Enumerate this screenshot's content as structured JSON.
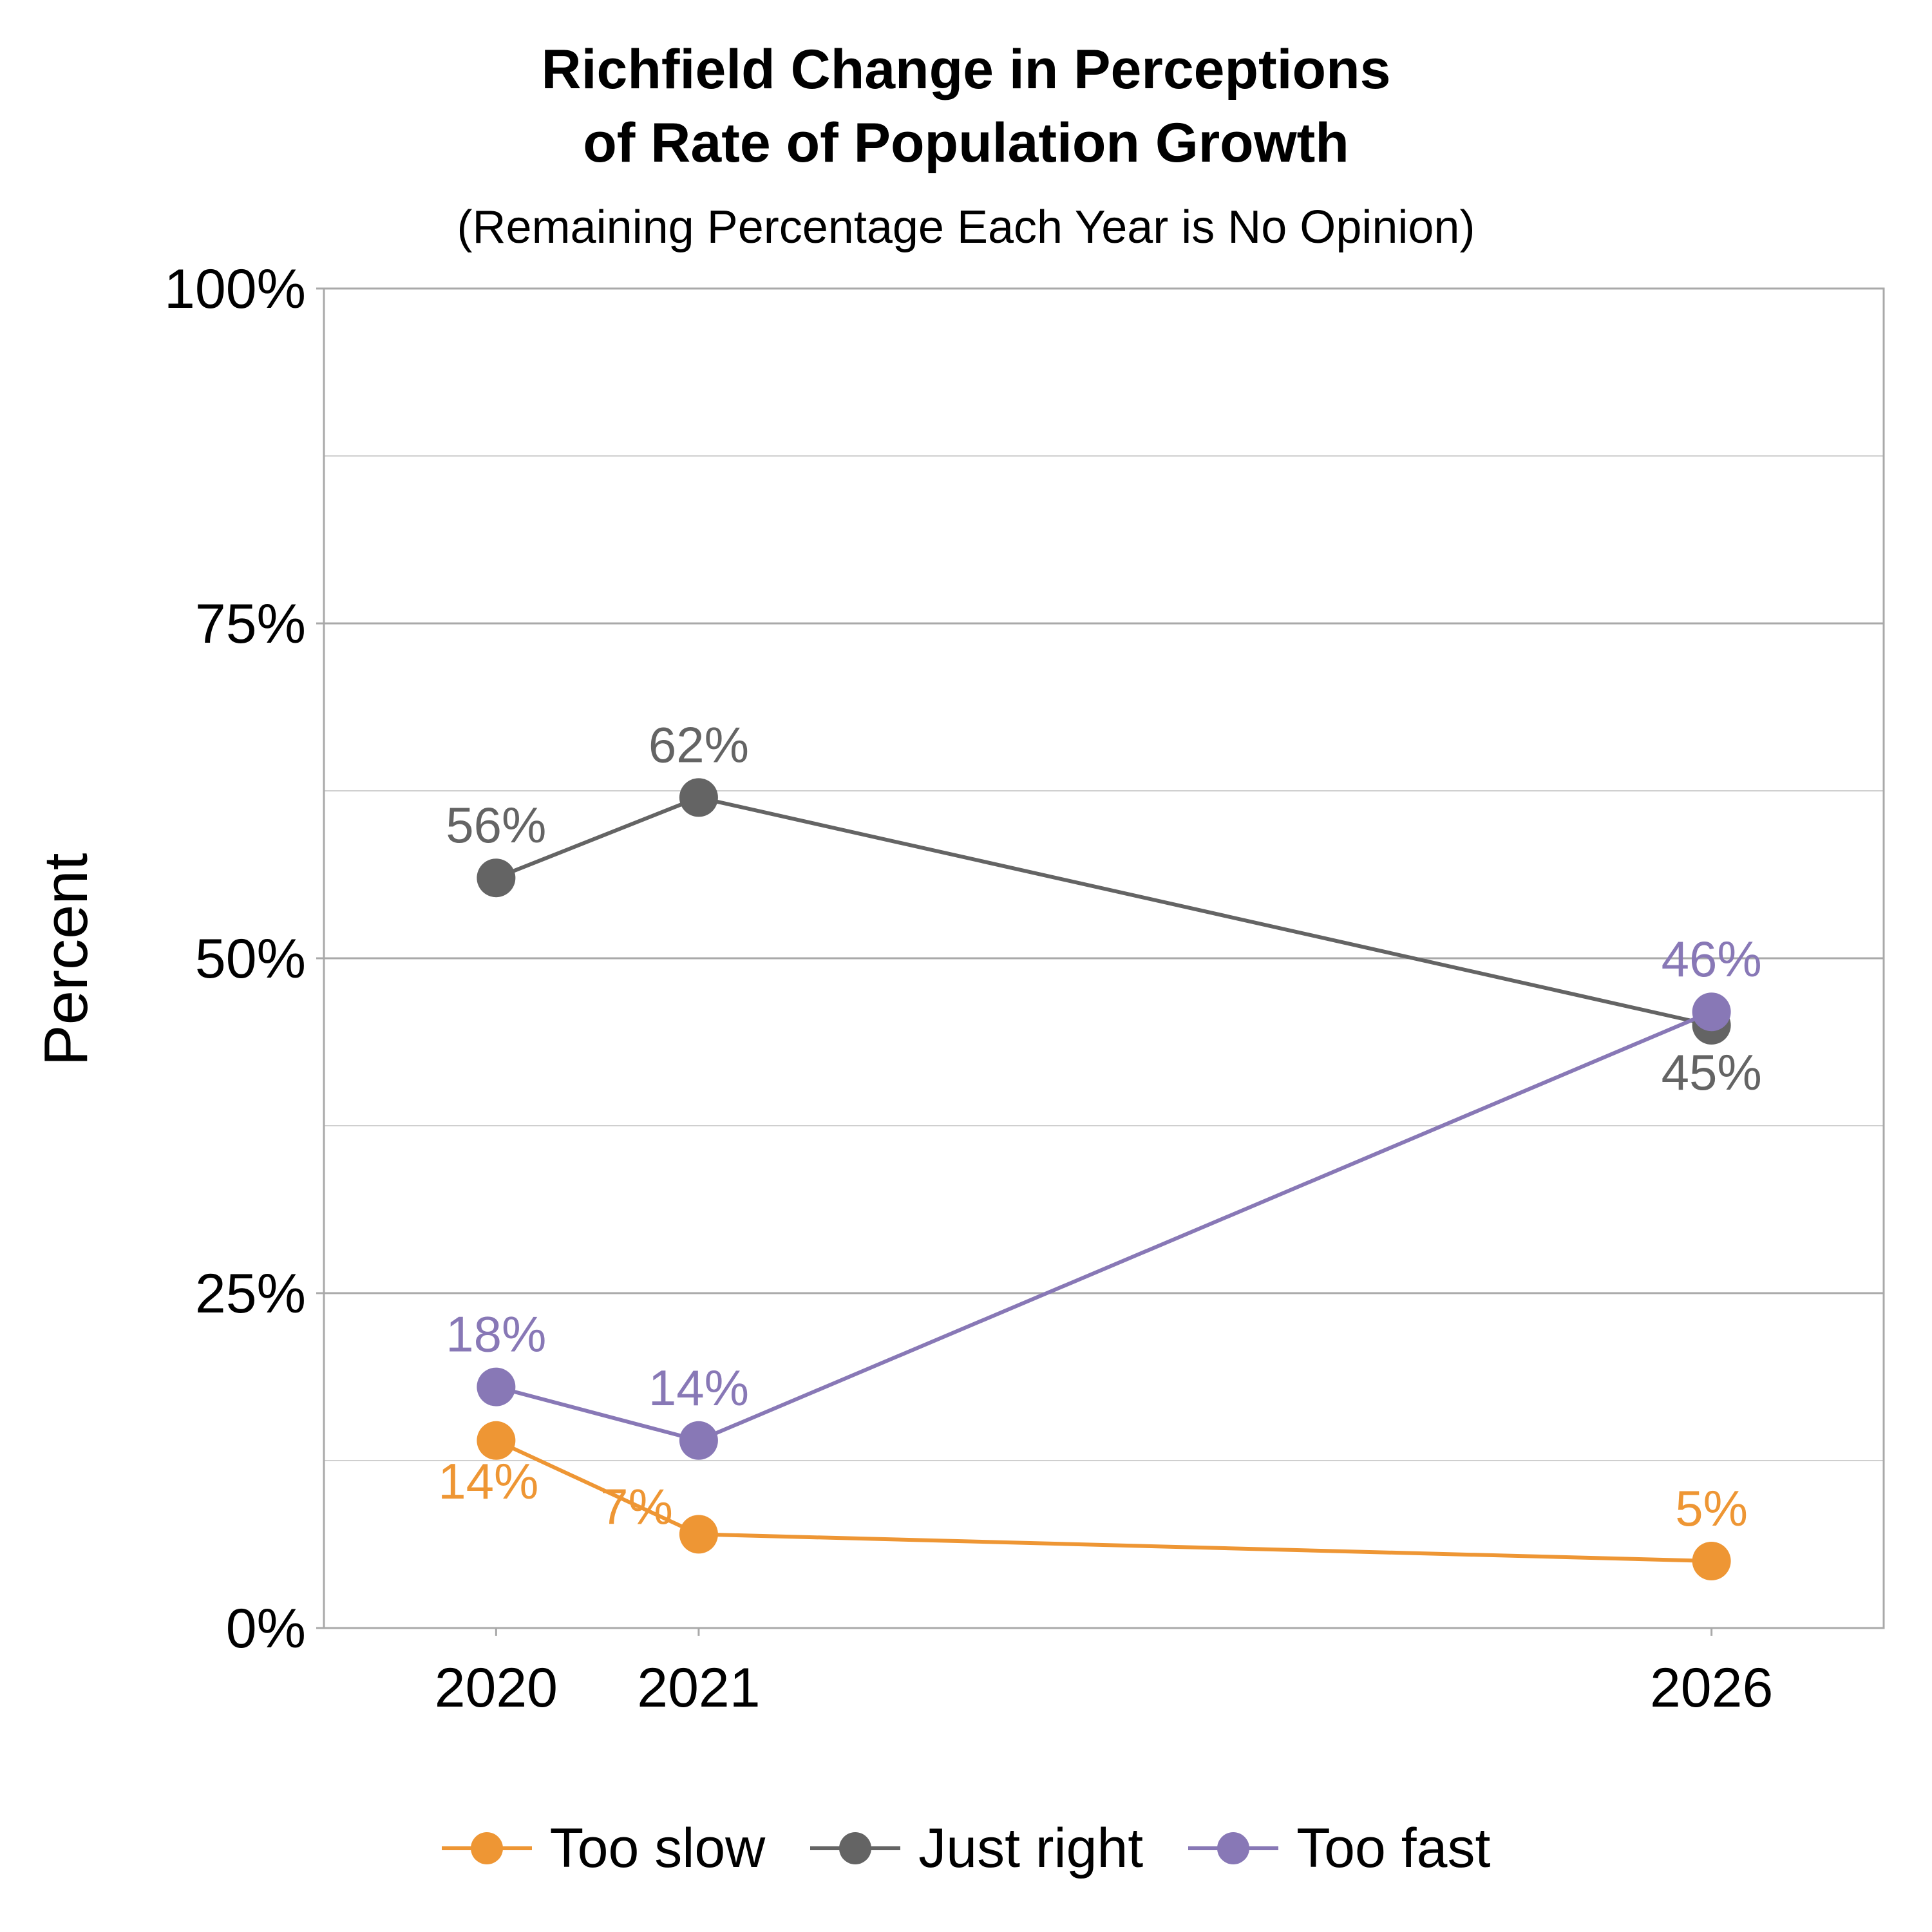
{
  "chart_data": {
    "type": "line",
    "title_lines": [
      "Richfield Change in Perceptions",
      "of Rate of Population Growth"
    ],
    "subtitle": "(Remaining Percentage Each Year is No Opinion)",
    "xlabel": "",
    "ylabel": "Percent",
    "x": [
      2020,
      2021,
      2026
    ],
    "x_tick_labels": [
      "2020",
      "2021",
      "2026"
    ],
    "xlim": [
      2019.15,
      2026.85
    ],
    "ylim": [
      0,
      100
    ],
    "y_ticks": [
      0,
      25,
      50,
      75,
      100
    ],
    "y_tick_labels": [
      "0%",
      "25%",
      "50%",
      "75%",
      "100%"
    ],
    "y_minor_gridlines": [
      12.5,
      37.5,
      62.5,
      87.5
    ],
    "grid": true,
    "legend_position": "bottom",
    "series": [
      {
        "name": "Too slow",
        "color": "#EE9634",
        "values": [
          14,
          7,
          5
        ],
        "labels": [
          "14%",
          "7%",
          "5%"
        ],
        "label_positions": [
          "below-left",
          "left",
          "above"
        ]
      },
      {
        "name": "Just right",
        "color": "#646464",
        "values": [
          56,
          62,
          45
        ],
        "labels": [
          "56%",
          "62%",
          "45%"
        ],
        "label_positions": [
          "above",
          "above",
          "below"
        ]
      },
      {
        "name": "Too fast",
        "color": "#8878B6",
        "values": [
          18,
          14,
          46
        ],
        "labels": [
          "18%",
          "14%",
          "46%"
        ],
        "label_positions": [
          "above",
          "above",
          "above"
        ]
      }
    ]
  }
}
